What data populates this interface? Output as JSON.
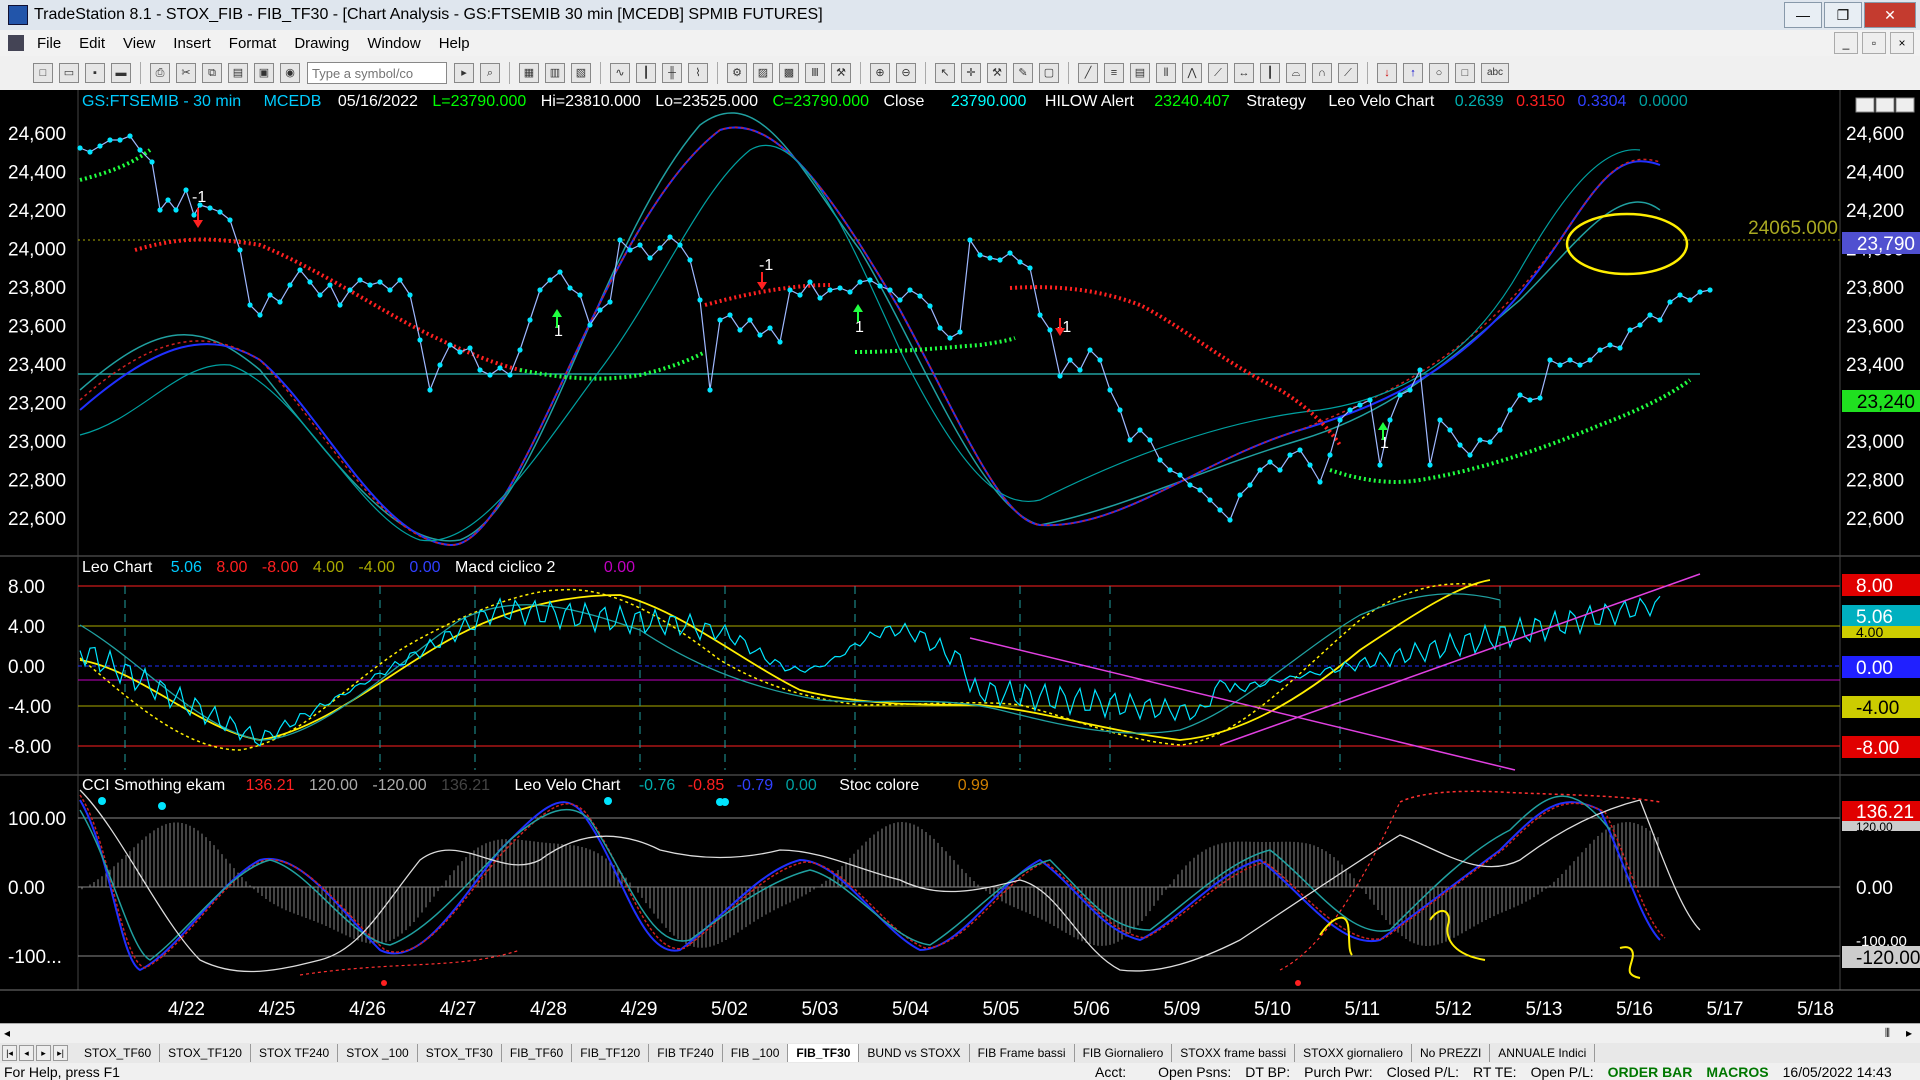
{
  "window": {
    "title": "TradeStation 8.1 - STOX_FIB - FIB_TF30 - [Chart Analysis - GS:FTSEMIB  30 min  [MCEDB] SPMIB FUTURES]",
    "minimize": "—",
    "restore": "❐",
    "close": "✕"
  },
  "menu": {
    "items": [
      "File",
      "Edit",
      "View",
      "Insert",
      "Format",
      "Drawing",
      "Window",
      "Help"
    ]
  },
  "toolbar": {
    "symbol_placeholder": "Type a symbol/co",
    "draw_text": "abc"
  },
  "header": {
    "symbol": "GS:FTSEMIB - 30 min",
    "feed": "MCEDB",
    "date": "05/16/2022",
    "low": "L=23790.000",
    "high": "Hi=23810.000",
    "lo": "Lo=23525.000",
    "close_eq": "C=23790.000",
    "close_label": "Close",
    "close_val": "23790.000",
    "hilow": "HILOW Alert",
    "hilow_val": "23240.407",
    "strategy": "Strategy",
    "leo_velo": "Leo Velo Chart",
    "v1": "0.2639",
    "v2": "0.3150",
    "v3": "0.3304",
    "v4": "0.0000"
  },
  "panel1": {
    "price_labels": [
      "24,600",
      "24,400",
      "24,200",
      "24,000",
      "23,800",
      "23,600",
      "23,400",
      "23,200",
      "23,000",
      "22,800",
      "22,600"
    ],
    "last_price_badge": "23,790",
    "hilow_badge": "23,240",
    "hline_label": "24065.000",
    "marks": [
      "-1",
      "-1",
      "-1",
      "1",
      "1",
      "1",
      "1"
    ]
  },
  "panel2": {
    "title": "Leo Chart",
    "v1": "5.06",
    "v2": "8.00",
    "v3": "-8.00",
    "v4": "4.00",
    "v5": "-4.00",
    "v6": "0.00",
    "macd": "Macd ciclico 2",
    "macd_val": "0.00",
    "labels": [
      "8.00",
      "4.00",
      "0.00",
      "-4.00",
      "-8.00"
    ],
    "badges": [
      "8.00",
      "5.06",
      "4.00",
      "0.00",
      "-4.00",
      "-8.00"
    ]
  },
  "panel3": {
    "title": "CCI Smothing ekam",
    "v1": "136.21",
    "v2": "120.00",
    "v3": "-120.00",
    "v4": "136.21",
    "leo": "Leo Velo Chart",
    "l1": "-0.76",
    "l2": "-0.85",
    "l3": "-0.79",
    "l4": "0.00",
    "stoc": "Stoc colore",
    "stoc_val": "0.99",
    "labels": [
      "100.00",
      "0.00",
      "-100..."
    ],
    "badges": [
      "136.21",
      "120.00",
      "0.00",
      "-100.00",
      "-120.00"
    ]
  },
  "xaxis": [
    "4/22",
    "4/25",
    "4/26",
    "4/27",
    "4/28",
    "4/29",
    "5/02",
    "5/03",
    "5/04",
    "5/05",
    "5/06",
    "5/09",
    "5/10",
    "5/11",
    "5/12",
    "5/13",
    "5/16",
    "5/17",
    "5/18"
  ],
  "tabs": [
    "STOX_TF60",
    "STOX_TF120",
    "STOX TF240",
    "STOX _100",
    "STOX_TF30",
    "FIB_TF60",
    "FIB_TF120",
    "FIB TF240",
    "FIB _100",
    "FIB_TF30",
    "BUND vs STOXX",
    "FIB Frame bassi",
    "FIB Giornaliero",
    "STOXX frame bassi",
    "STOXX giornaliero",
    "No PREZZI",
    "ANNUALE Indici"
  ],
  "active_tab": "FIB_TF30",
  "status": {
    "help": "For Help, press F1",
    "acct": "Acct:",
    "open_psns": "Open Psns:",
    "dt_bp": "DT BP:",
    "purch_pwr": "Purch Pwr:",
    "closed_pl": "Closed P/L:",
    "rt_te": "RT TE:",
    "open_pl": "Open P/L:",
    "order_bar": "ORDER BAR",
    "macros": "MACROS",
    "datetime": "16/05/2022 14:43"
  },
  "colors": {
    "bg": "#000000",
    "price": "#00e5ff",
    "hilow_red": "#ff2020",
    "hilow_green": "#20ff40",
    "blue": "#2030ff",
    "teal": "#20a0a0",
    "yellow": "#ffee00",
    "magenta": "#e040e0"
  }
}
